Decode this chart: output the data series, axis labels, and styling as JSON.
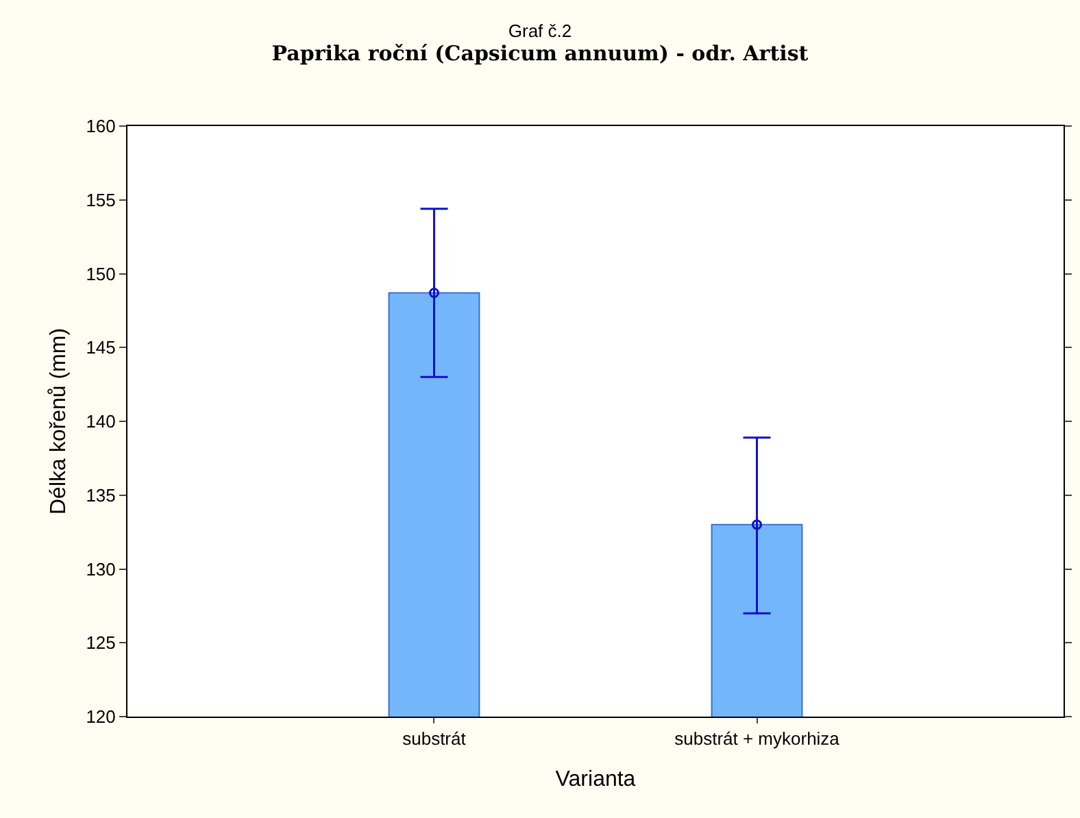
{
  "chart_data": {
    "type": "bar",
    "title": "Graf č.2",
    "subtitle": "Paprika roční (Capsicum annuum) - odr. Artist",
    "xlabel": "Varianta",
    "ylabel": "Délka kořenů (mm)",
    "categories": [
      "substrát",
      "substrát + mykorhiza"
    ],
    "series": [
      {
        "color": "#74b6fa",
        "values": [
          148.7,
          133.0
        ],
        "errors": [
          [
            143.0,
            154.4
          ],
          [
            127.0,
            138.9
          ]
        ]
      },
      {
        "type": "scatter",
        "color": "#1010d0",
        "x": [
          "substrát",
          "substrát + mykorhiza"
        ],
        "values": [
          148.7,
          133.0
        ]
      }
    ],
    "ylim": [
      120,
      160
    ],
    "yticks": [
      120,
      125,
      130,
      135,
      140,
      145,
      150,
      155,
      160
    ],
    "grid": false,
    "marker": "circle"
  }
}
